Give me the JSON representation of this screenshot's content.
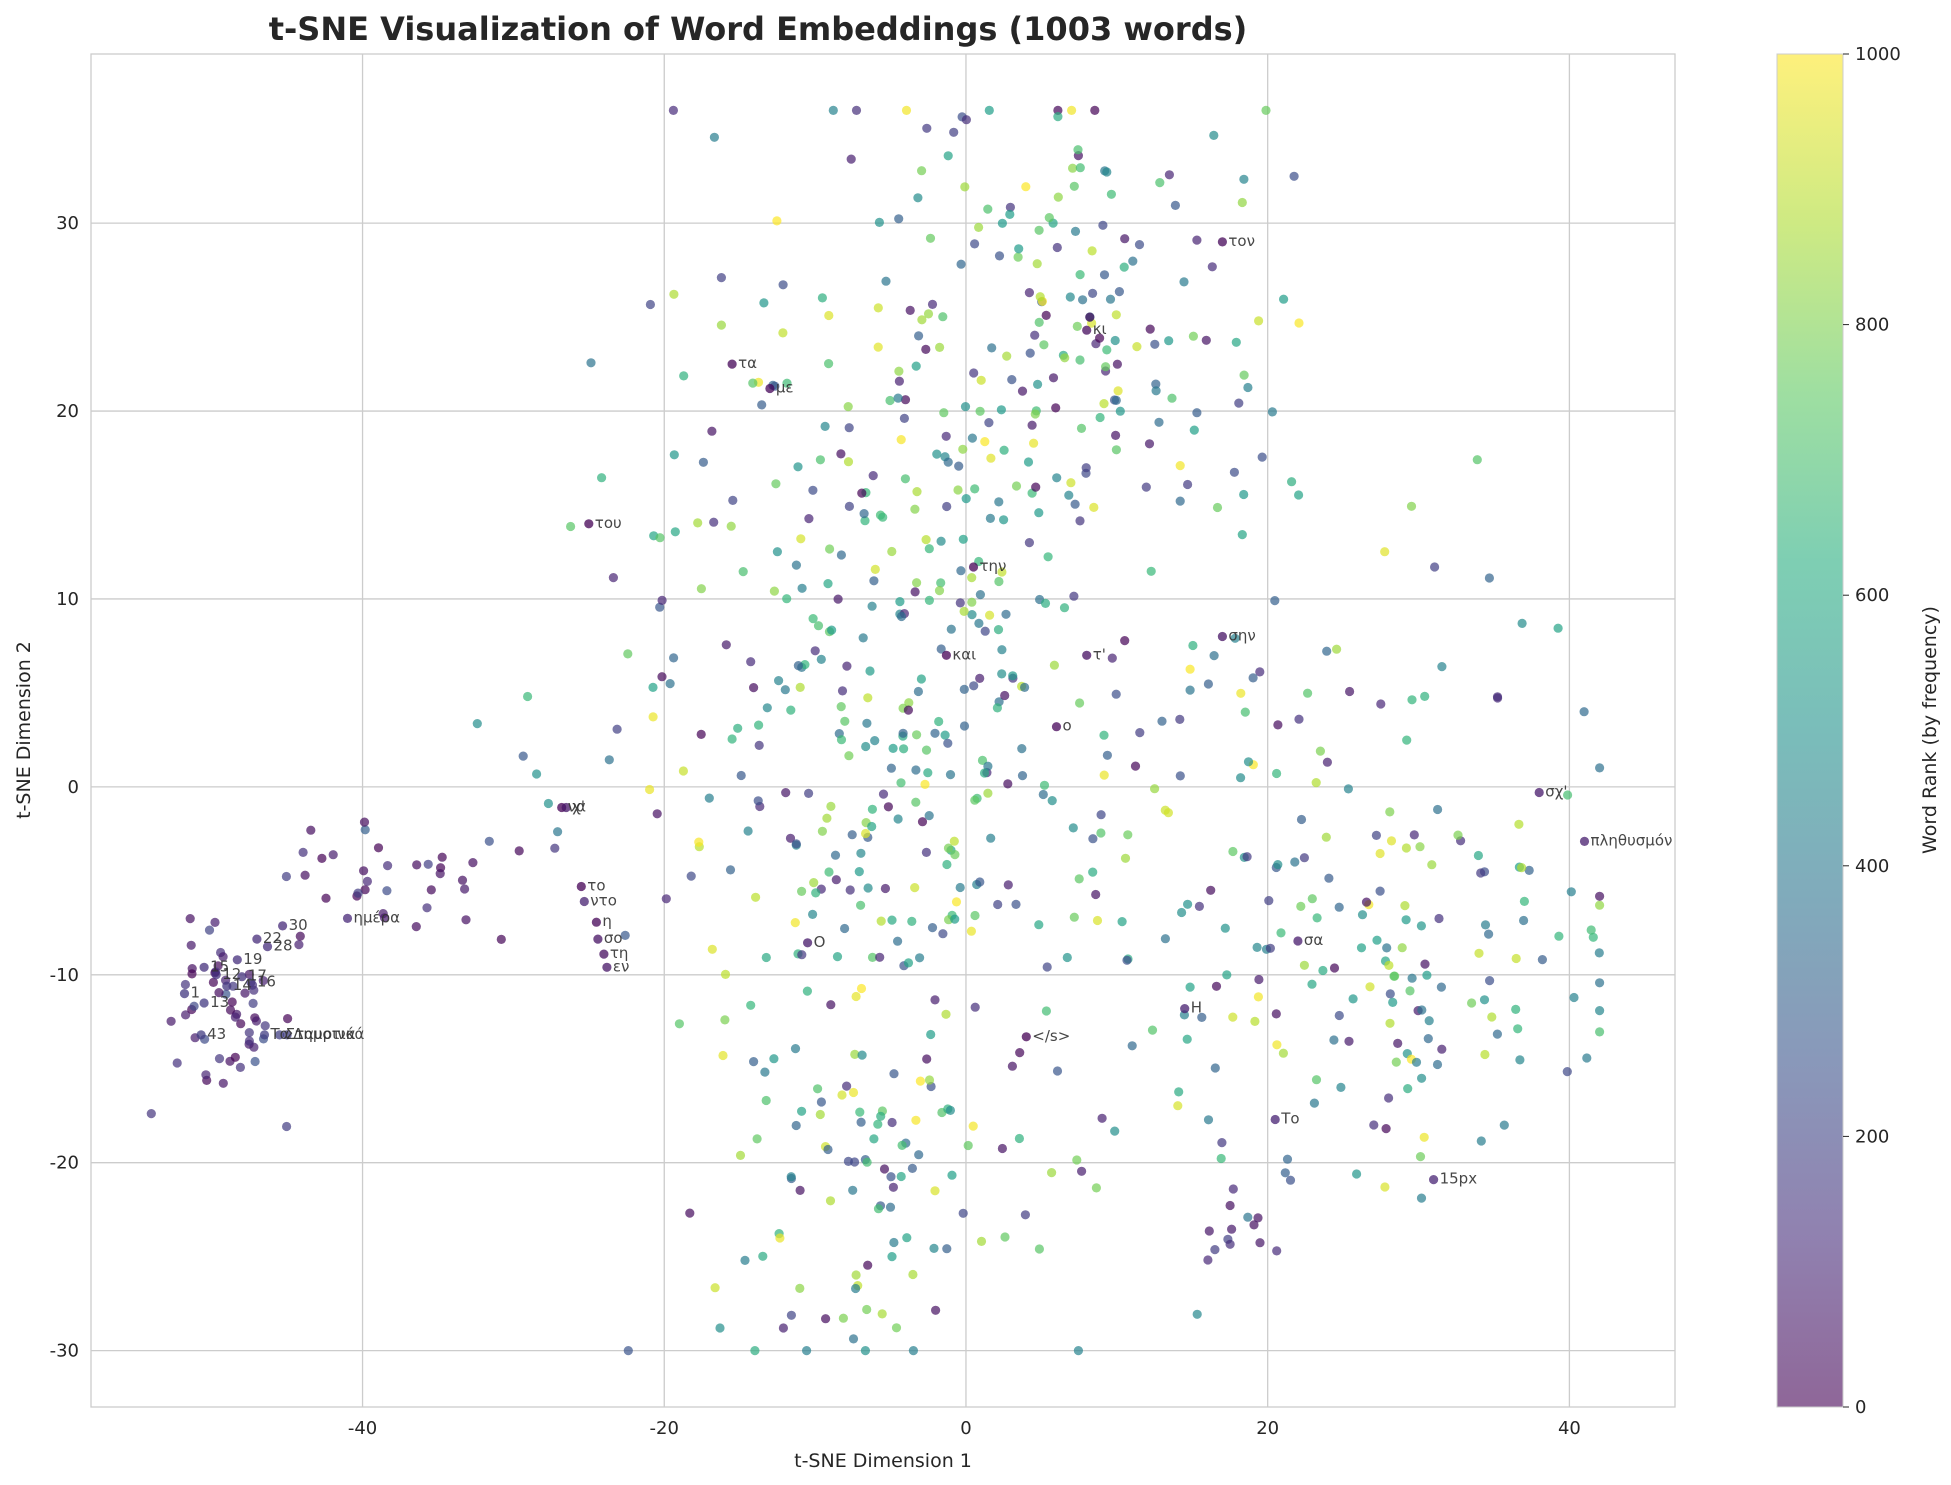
{
  "chart_data": {
    "type": "scatter",
    "title": "t-SNE Visualization of Word Embeddings (1003 words)",
    "xlabel": "t-SNE Dimension 1",
    "ylabel": "t-SNE Dimension 2",
    "xlim": [
      -58,
      47
    ],
    "ylim": [
      -33,
      39
    ],
    "xticks": [
      -40,
      -20,
      0,
      20,
      40
    ],
    "yticks": [
      -30,
      -20,
      -10,
      0,
      10,
      20,
      30
    ],
    "xtick_labels": [
      "-40",
      "-20",
      "0",
      "20",
      "40"
    ],
    "ytick_labels": [
      "-30",
      "-20",
      "-10",
      "0",
      "10",
      "20",
      "30"
    ],
    "grid": true,
    "colormap": "viridis",
    "colorbar": {
      "label": "Word Rank (by frequency)",
      "range": [
        0,
        1000
      ],
      "ticks": [
        0,
        200,
        400,
        600,
        800,
        1000
      ],
      "tick_labels": [
        "0",
        "200",
        "400",
        "600",
        "800",
        "1000"
      ]
    },
    "total_points": 1003,
    "labeled_points": [
      {
        "word": "τον",
        "x": 17,
        "y": 29,
        "rank": 20
      },
      {
        "word": "κι",
        "x": 8,
        "y": 24.3,
        "rank": 30
      },
      {
        "word": "τα",
        "x": -15.5,
        "y": 22.5,
        "rank": 10
      },
      {
        "word": "με",
        "x": -13,
        "y": 21.2,
        "rank": 12
      },
      {
        "word": "του",
        "x": -25,
        "y": 14,
        "rank": 5
      },
      {
        "word": "την",
        "x": 0.5,
        "y": 11.7,
        "rank": 6
      },
      {
        "word": "και",
        "x": -1.3,
        "y": 7,
        "rank": 3
      },
      {
        "word": "τ'",
        "x": 8,
        "y": 7,
        "rank": 40
      },
      {
        "word": "σην",
        "x": 17,
        "y": 8,
        "rank": 50
      },
      {
        "word": "ο",
        "x": 6,
        "y": 3.2,
        "rank": 15
      },
      {
        "word": "να",
        "x": -26.8,
        "y": -1.1,
        "rank": 4
      },
      {
        "word": "χ'",
        "x": -26.5,
        "y": -1.1,
        "rank": 60
      },
      {
        "word": "σχ'",
        "x": 38,
        "y": -0.3,
        "rank": 70
      },
      {
        "word": "πληθυσμόν",
        "x": 41,
        "y": -2.9,
        "rank": 80
      },
      {
        "word": "το",
        "x": -25.5,
        "y": -5.3,
        "rank": 2
      },
      {
        "word": "ντο",
        "x": -25.3,
        "y": -6.1,
        "rank": 90
      },
      {
        "word": "η",
        "x": -24.5,
        "y": -7.2,
        "rank": 8
      },
      {
        "word": "σο",
        "x": -24.4,
        "y": -8.1,
        "rank": 45
      },
      {
        "word": "τη",
        "x": -24,
        "y": -8.9,
        "rank": 35
      },
      {
        "word": "εν",
        "x": -23.8,
        "y": -9.6,
        "rank": 55
      },
      {
        "word": "O",
        "x": -10.5,
        "y": -8.3,
        "rank": 65
      },
      {
        "word": "σα",
        "x": 22,
        "y": -8.2,
        "rank": 75
      },
      {
        "word": "Η",
        "x": 14.5,
        "y": -11.8,
        "rank": 85
      },
      {
        "word": "</s>",
        "x": 4,
        "y": -13.3,
        "rank": 1
      },
      {
        "word": "Το",
        "x": 20.5,
        "y": -17.7,
        "rank": 95
      },
      {
        "word": "15px",
        "x": 31,
        "y": -20.9,
        "rank": 100
      },
      {
        "word": "ημέρα",
        "x": -41,
        "y": -7,
        "rank": 110
      },
      {
        "word": "30",
        "x": -45.3,
        "y": -7.4,
        "rank": 120
      },
      {
        "word": "22",
        "x": -47,
        "y": -8.1,
        "rank": 125
      },
      {
        "word": "28",
        "x": -46.3,
        "y": -8.5,
        "rank": 130
      },
      {
        "word": "19",
        "x": -48.3,
        "y": -9.2,
        "rank": 135
      },
      {
        "word": "15",
        "x": -50.5,
        "y": -9.6,
        "rank": 140
      },
      {
        "word": "12",
        "x": -49.7,
        "y": -10,
        "rank": 145
      },
      {
        "word": "17",
        "x": -48,
        "y": -10.1,
        "rank": 150
      },
      {
        "word": "16",
        "x": -47.4,
        "y": -10.4,
        "rank": 155
      },
      {
        "word": "14",
        "x": -49,
        "y": -10.6,
        "rank": 160
      },
      {
        "word": "1",
        "x": -51.8,
        "y": -11,
        "rank": 165
      },
      {
        "word": "13",
        "x": -50.5,
        "y": -11.5,
        "rank": 170
      },
      {
        "word": "43",
        "x": -50.7,
        "y": -13.2,
        "rank": 175
      },
      {
        "word": "Τα",
        "x": -46.5,
        "y": -13.2,
        "rank": 180
      },
      {
        "word": "Δημοτικά",
        "x": -45,
        "y": -13.2,
        "rank": 185
      },
      {
        "word": "Σταυρινά",
        "x": -45.5,
        "y": -13.2,
        "rank": 190
      }
    ]
  }
}
